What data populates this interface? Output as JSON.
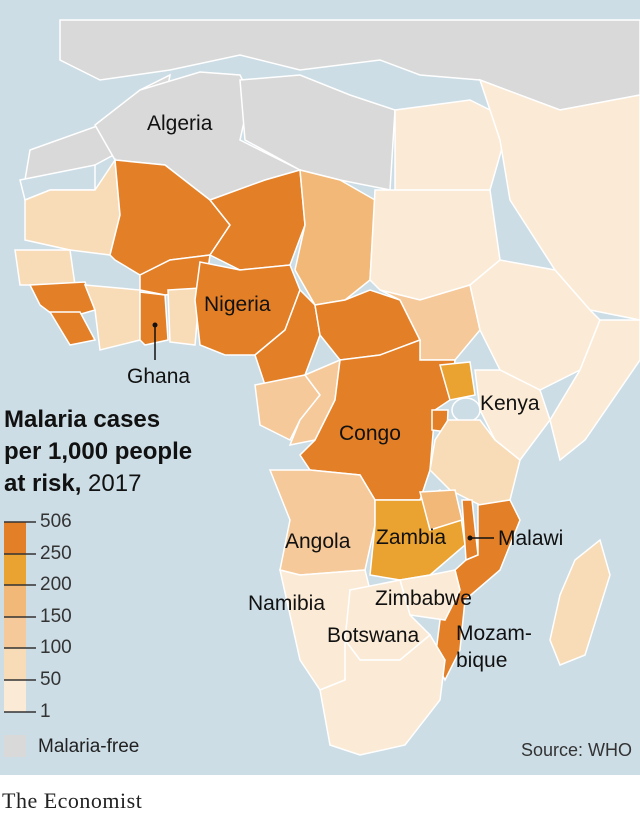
{
  "colors": {
    "sea": "#ccdde6",
    "malaria_free": "#d9d9d9",
    "c1": "#fbebd6",
    "c50": "#f8dcb8",
    "c100": "#f5c99a",
    "c150": "#f2b878",
    "c200": "#eaa231",
    "c250": "#e37f26",
    "border": "#ffffff",
    "accent": "#e3120b"
  },
  "labels": {
    "algeria": "Algeria",
    "nigeria": "Nigeria",
    "ghana": "Ghana",
    "kenya": "Kenya",
    "congo": "Congo",
    "angola": "Angola",
    "zambia": "Zambia",
    "malawi": "Malawi",
    "namibia": "Namibia",
    "zimbabwe": "Zimbabwe",
    "botswana": "Botswana",
    "mozambique_1": "Mozam-",
    "mozambique_2": "bique"
  },
  "legend": {
    "title_bold_1": "Malaria cases",
    "title_bold_2": "per 1,000 people",
    "title_bold_3": "at risk,",
    "title_year": " 2017",
    "ticks": [
      "506",
      "250",
      "200",
      "150",
      "100",
      "50",
      "1"
    ],
    "malaria_free": "Malaria-free"
  },
  "source": "Source: WHO",
  "brand": "The Economist"
}
